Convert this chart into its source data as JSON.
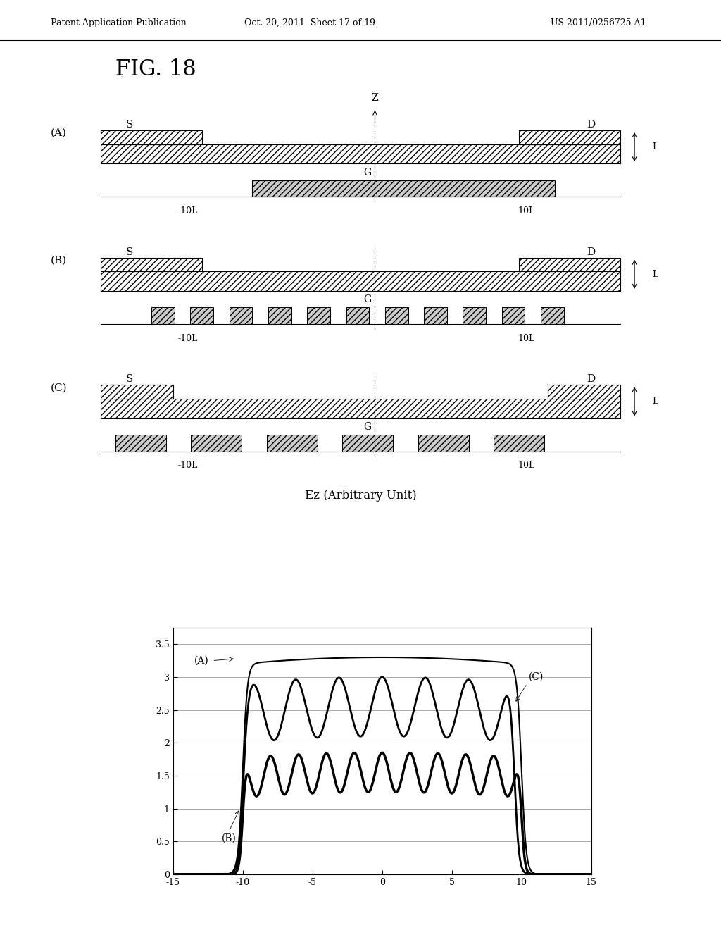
{
  "title": "FIG. 18",
  "header_left": "Patent Application Publication",
  "header_center": "Oct. 20, 2011  Sheet 17 of 19",
  "header_right": "US 2011/0256725 A1",
  "footer_note": "Ez (Arbitrary Unit)",
  "background_color": "#ffffff",
  "graph": {
    "xlim": [
      -15,
      15
    ],
    "ylim": [
      0,
      3.75
    ],
    "xticks": [
      -15,
      -10,
      -5,
      0,
      5,
      10,
      15
    ],
    "yticks": [
      0,
      0.5,
      1.0,
      1.5,
      2.0,
      2.5,
      3.0,
      3.5
    ],
    "ytick_labels": [
      "0",
      "0.5",
      "1",
      "1.5",
      "2",
      "2.5",
      "3",
      "3.5"
    ]
  }
}
